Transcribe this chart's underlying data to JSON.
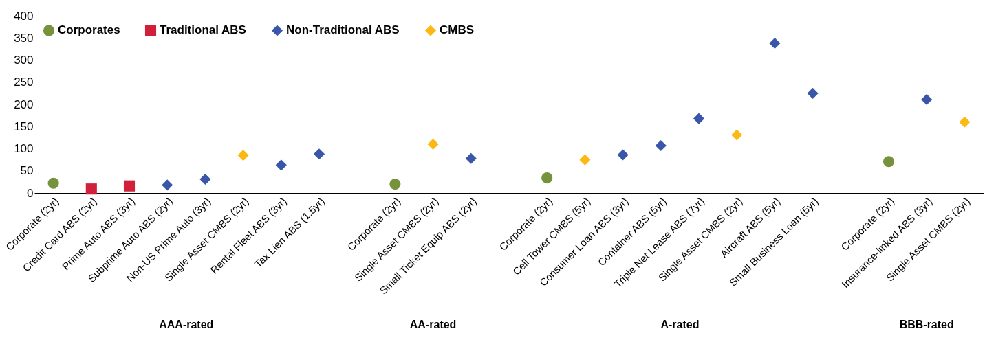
{
  "chart_data": {
    "type": "scatter",
    "categories": [
      "Corporate (2yr)",
      "Credit Card ABS (2yr)",
      "Prime Auto ABS (3yr)",
      "Subprime Auto ABS (2yr)",
      "Non-US Prime Auto (3yr)",
      "Single Asset CMBS (2yr)",
      "Rental Fleet ABS (3yr)",
      "Tax Lien ABS (1.5yr)",
      null,
      "Corporate (2yr)",
      "Single Asset CMBS (2yr)",
      "Small Ticket Equip ABS (2yr)",
      null,
      "Corporate (2yr)",
      "Cell Tower CMBS (5yr)",
      "Consumer Loan ABS (3yr)",
      "Container ABS (5yr)",
      "Triple Net Lease ABS (7yr)",
      "Single Asset CMBS (2yr)",
      "Aircraft ABS (5yr)",
      "Small Business Loan (5yr)",
      null,
      "Corporate (2yr)",
      "Insurance-linked ABS (3yr)",
      "Single Asset CMBS (2yr)"
    ],
    "series": [
      {
        "name": "Corporates",
        "color": "#76923c",
        "marker": "circle",
        "values": [
          22,
          null,
          null,
          null,
          null,
          null,
          null,
          null,
          null,
          20,
          null,
          null,
          null,
          34,
          null,
          null,
          null,
          null,
          null,
          null,
          null,
          null,
          71,
          null,
          null
        ]
      },
      {
        "name": "Traditional ABS",
        "color": "#d0203a",
        "marker": "square",
        "values": [
          null,
          9,
          16,
          null,
          null,
          null,
          null,
          null,
          null,
          null,
          null,
          null,
          null,
          null,
          null,
          null,
          null,
          null,
          null,
          null,
          null,
          null,
          null,
          null,
          null
        ]
      },
      {
        "name": "Non-Traditional ABS",
        "color": "#3a56a8",
        "marker": "diamond",
        "values": [
          null,
          null,
          null,
          18,
          31,
          null,
          63,
          88,
          null,
          null,
          null,
          78,
          null,
          null,
          null,
          86,
          107,
          168,
          null,
          338,
          225,
          null,
          null,
          211,
          null
        ]
      },
      {
        "name": "CMBS",
        "color": "#fdb913",
        "marker": "diamond",
        "values": [
          null,
          null,
          null,
          null,
          null,
          85,
          null,
          null,
          null,
          null,
          110,
          null,
          null,
          null,
          75,
          null,
          null,
          null,
          131,
          null,
          null,
          null,
          null,
          null,
          160
        ]
      }
    ],
    "annotations": [
      "AAA-rated",
      "AA-rated",
      "A-rated",
      "BBB-rated"
    ],
    "ylim": [
      0,
      400
    ],
    "yticks": [
      0,
      50,
      100,
      150,
      200,
      250,
      300,
      350,
      400
    ],
    "grid": false,
    "legend": "top left"
  }
}
